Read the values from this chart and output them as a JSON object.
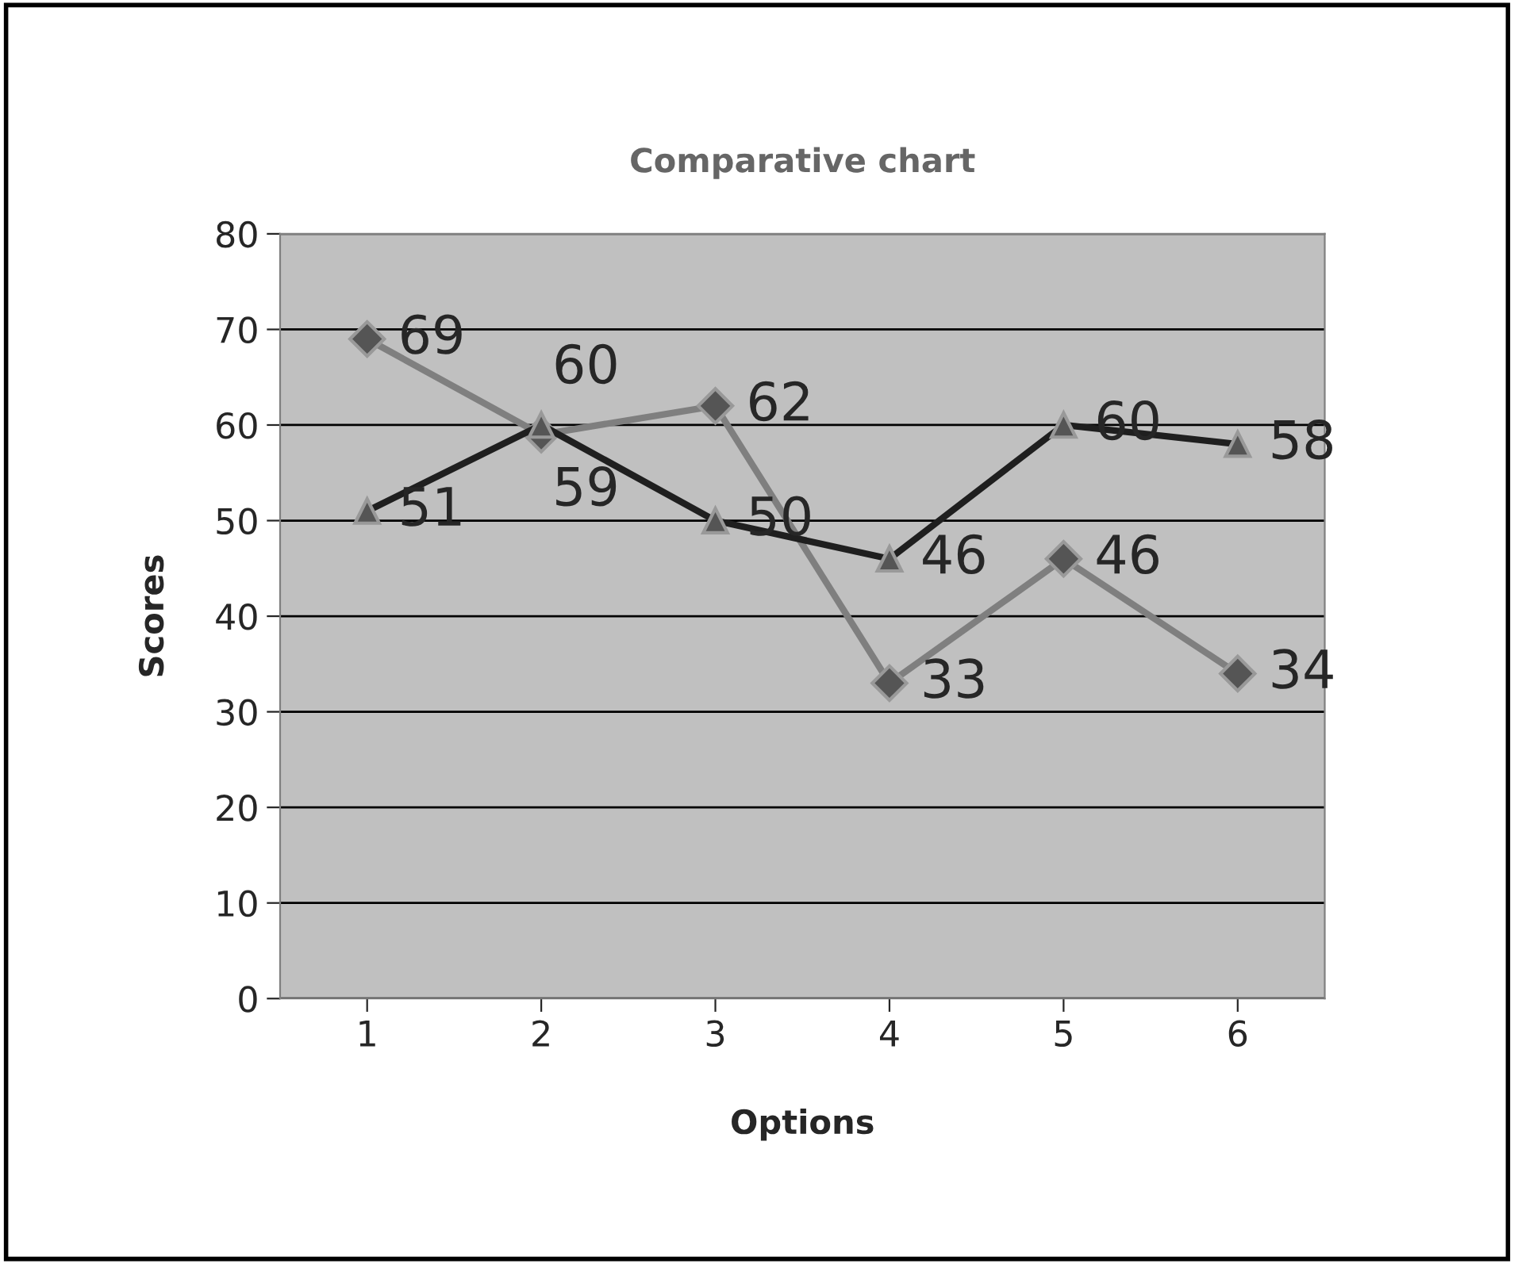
{
  "chart_data": {
    "type": "line",
    "title": "Comparative chart",
    "xlabel": "Options",
    "ylabel": "Scores",
    "categories": [
      "1",
      "2",
      "3",
      "4",
      "5",
      "6"
    ],
    "series": [
      {
        "color": "#7f7f7f",
        "marker": "diamond",
        "values": [
          69,
          59,
          62,
          33,
          46,
          34
        ]
      },
      {
        "color": "#1f1f1f",
        "marker": "triangle",
        "values": [
          51,
          60,
          50,
          46,
          60,
          58
        ]
      }
    ],
    "ylim": [
      0,
      80
    ],
    "yticks": [
      0,
      10,
      20,
      30,
      40,
      50,
      60,
      70,
      80
    ],
    "grid": "y",
    "data_labels": true,
    "line_style": "solid",
    "legend": false
  }
}
